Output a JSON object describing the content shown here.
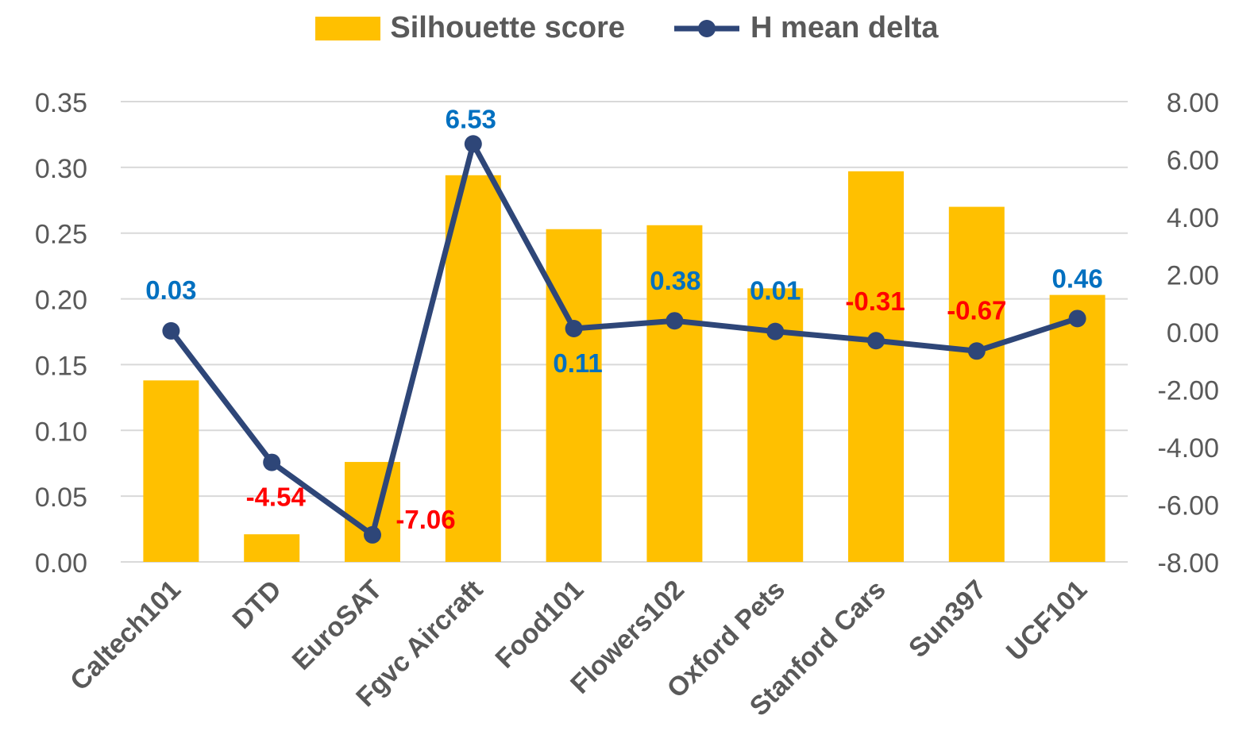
{
  "legend": {
    "bar_label": "Silhouette score",
    "line_label": "H mean delta"
  },
  "colors": {
    "bar": "#FFC000",
    "line": "#2E4678",
    "positive_label": "#0070C0",
    "negative_label": "#FF0000",
    "grid": "#D9D9D9",
    "axis_text": "#595959"
  },
  "chart_data": {
    "type": "bar",
    "categories": [
      "Caltech101",
      "DTD",
      "EuroSAT",
      "Fgvc Aircraft",
      "Food101",
      "Flowers102",
      "Oxford Pets",
      "Stanford Cars",
      "Sun397",
      "UCF101"
    ],
    "series": [
      {
        "name": "Silhouette score",
        "type": "bar",
        "axis": "left",
        "values": [
          0.138,
          0.021,
          0.076,
          0.294,
          0.253,
          0.256,
          0.208,
          0.297,
          0.27,
          0.203
        ]
      },
      {
        "name": "H mean delta",
        "type": "line",
        "axis": "right",
        "values": [
          0.03,
          -4.54,
          -7.06,
          6.53,
          0.11,
          0.38,
          0.01,
          -0.31,
          -0.67,
          0.46
        ],
        "labels": [
          "0.03",
          "-4.54",
          "-7.06",
          "6.53",
          "0.11",
          "0.38",
          "0.01",
          "-0.31",
          "-0.67",
          "0.46"
        ]
      }
    ],
    "y_left": {
      "min": 0,
      "max": 0.35,
      "ticks": [
        "0.00",
        "0.05",
        "0.10",
        "0.15",
        "0.20",
        "0.25",
        "0.30",
        "0.35"
      ]
    },
    "y_right": {
      "min": -8,
      "max": 8,
      "ticks": [
        "-8.00",
        "-6.00",
        "-4.00",
        "-2.00",
        "0.00",
        "2.00",
        "4.00",
        "6.00",
        "8.00"
      ]
    },
    "grid": true,
    "legend_position": "top"
  }
}
